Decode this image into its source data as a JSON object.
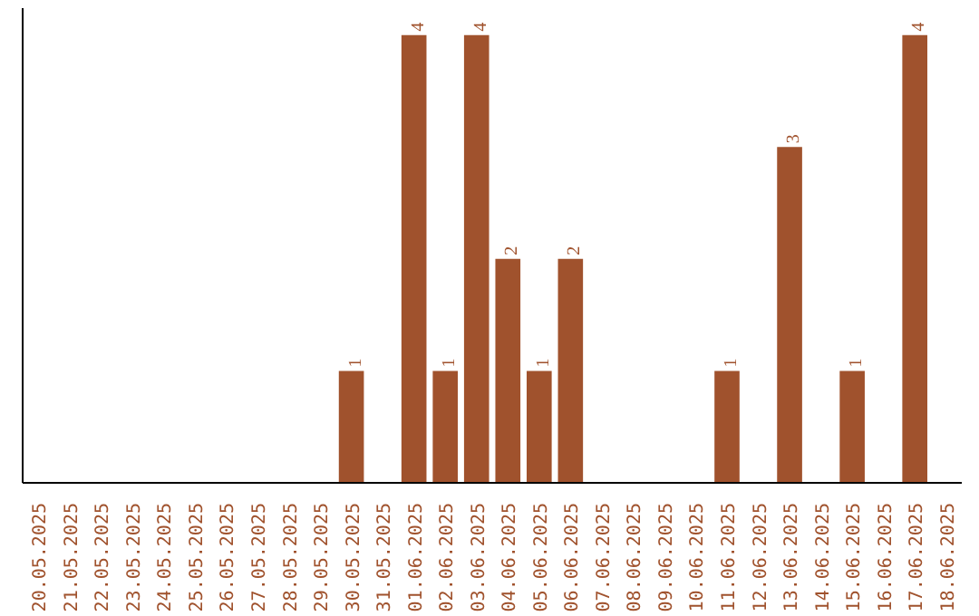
{
  "chart_data": {
    "type": "bar",
    "categories": [
      "20.05.2025",
      "21.05.2025",
      "22.05.2025",
      "23.05.2025",
      "24.05.2025",
      "25.05.2025",
      "26.05.2025",
      "27.05.2025",
      "28.05.2025",
      "29.05.2025",
      "30.05.2025",
      "31.05.2025",
      "01.06.2025",
      "02.06.2025",
      "03.06.2025",
      "04.06.2025",
      "05.06.2025",
      "06.06.2025",
      "07.06.2025",
      "08.06.2025",
      "09.06.2025",
      "10.06.2025",
      "11.06.2025",
      "12.06.2025",
      "13.06.2025",
      "14.06.2025",
      "15.06.2025",
      "16.06.2025",
      "17.06.2025",
      "18.06.2025"
    ],
    "values": [
      0,
      0,
      0,
      0,
      0,
      0,
      0,
      0,
      0,
      0,
      1,
      0,
      4,
      1,
      4,
      2,
      1,
      2,
      0,
      0,
      0,
      0,
      1,
      0,
      3,
      0,
      1,
      0,
      4,
      0
    ],
    "value_labels": [
      null,
      null,
      null,
      null,
      null,
      null,
      null,
      null,
      null,
      null,
      "1",
      null,
      "4",
      "1",
      "4",
      "2",
      "1",
      "2",
      null,
      null,
      null,
      null,
      "1",
      null,
      "3",
      null,
      "1",
      null,
      "4",
      null
    ],
    "color": "#a0522d"
  }
}
